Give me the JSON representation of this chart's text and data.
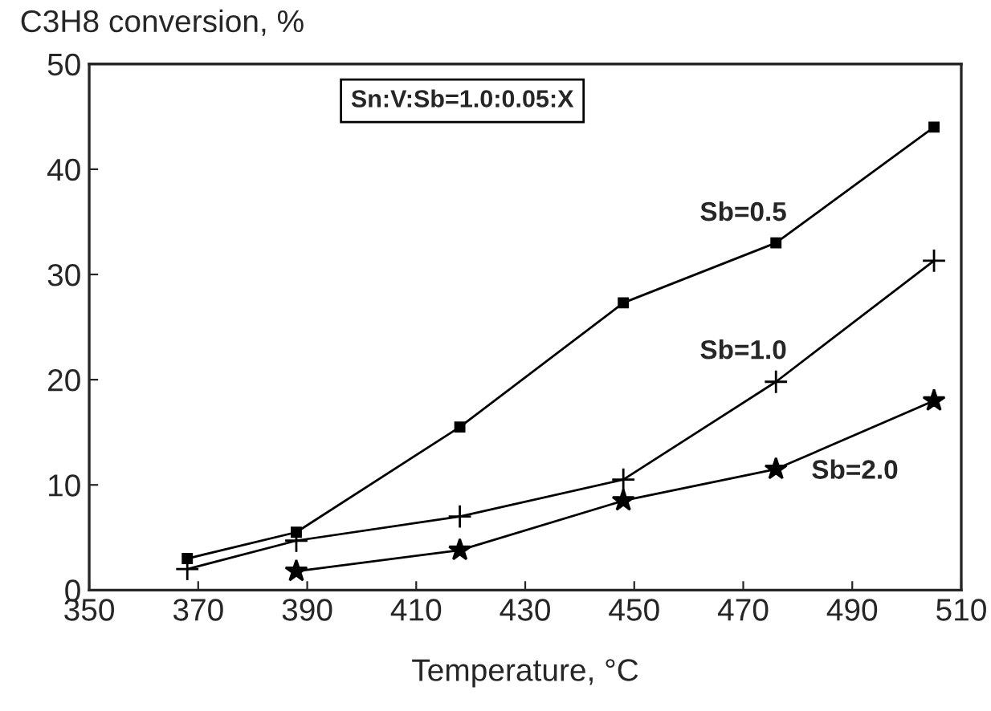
{
  "chart_data": {
    "type": "line",
    "xlabel": "Temperature, °C",
    "ylabel": "C3H8 conversion, %",
    "xlim": [
      350,
      510
    ],
    "xticks": [
      350,
      370,
      390,
      410,
      430,
      450,
      470,
      490,
      510
    ],
    "ylim": [
      0,
      50
    ],
    "yticks": [
      0,
      10,
      20,
      30,
      40,
      50
    ],
    "grid": false,
    "legend": false,
    "line_style": "solid",
    "annotations": [
      "Sn:V:Sb=1.0:0.05:X"
    ],
    "series": [
      {
        "name": "Sb=0.5",
        "color": "#000000",
        "marker": "square",
        "x": [
          368,
          388,
          418,
          448,
          476,
          505
        ],
        "values": [
          3,
          5.5,
          15.5,
          27.3,
          33,
          44
        ]
      },
      {
        "name": "Sb=1.0",
        "color": "#000000",
        "marker": "cross",
        "x": [
          368,
          388,
          418,
          448,
          476,
          505
        ],
        "values": [
          2,
          4.7,
          7,
          10.5,
          19.8,
          31.3
        ]
      },
      {
        "name": "Sb=2.0",
        "color": "#000000",
        "marker": "star",
        "x": [
          388,
          418,
          448,
          476,
          505
        ],
        "values": [
          1.8,
          3.8,
          8.5,
          11.5,
          18
        ]
      }
    ]
  }
}
